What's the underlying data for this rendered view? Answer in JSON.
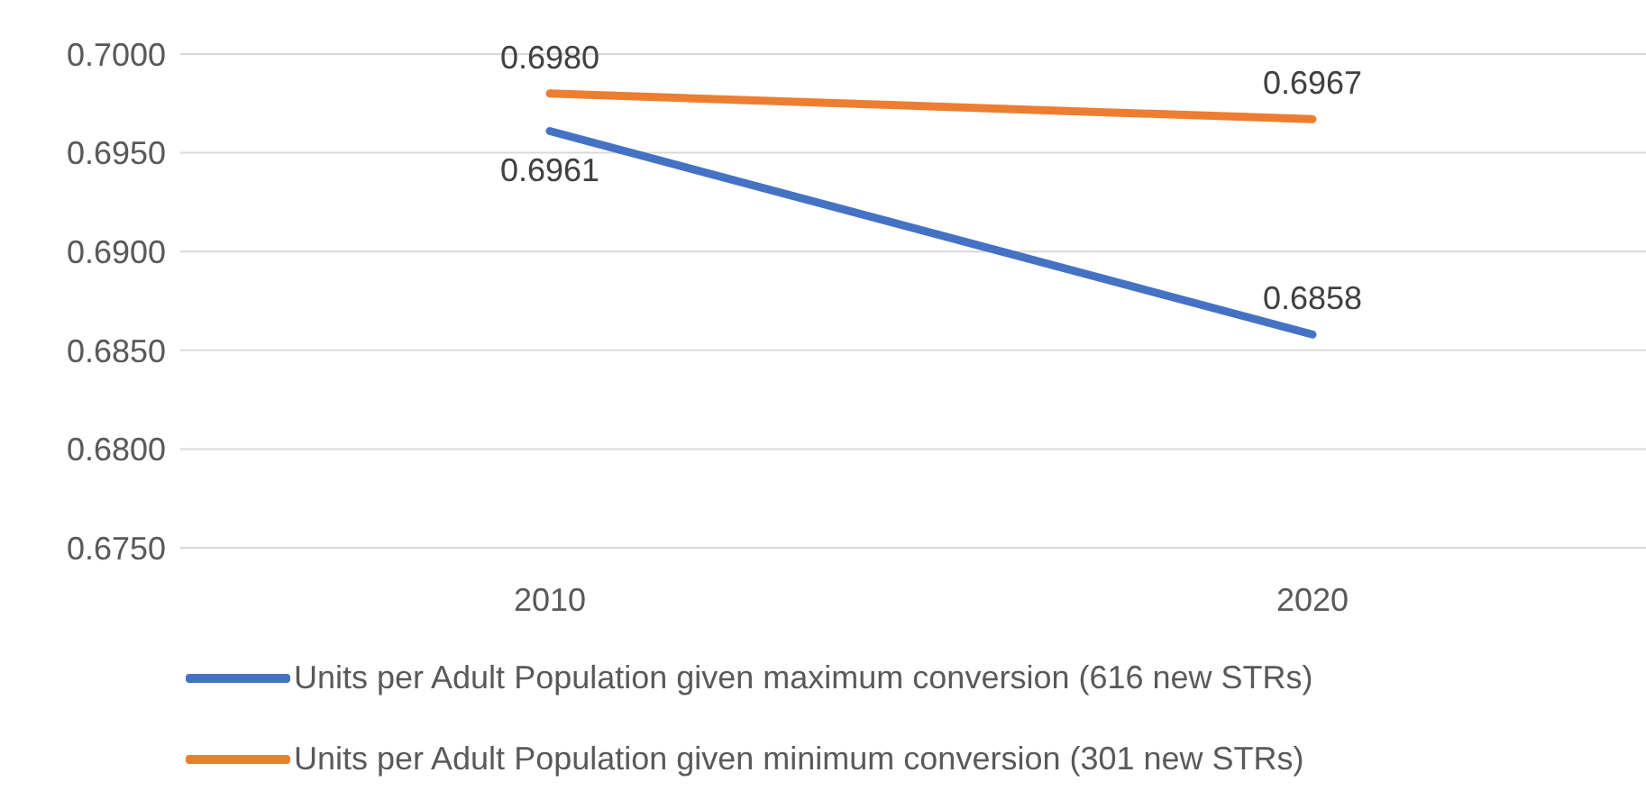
{
  "chart_data": {
    "type": "line",
    "categories": [
      "2010",
      "2020"
    ],
    "series": [
      {
        "name": "Units per Adult Population given maximum conversion (616 new STRs)",
        "color": "#4472c4",
        "values": [
          0.6961,
          0.6858
        ],
        "value_labels": [
          "0.6961",
          "0.6858"
        ]
      },
      {
        "name": "Units per Adult Population given minimum conversion (301 new STRs)",
        "color": "#ed7d31",
        "values": [
          0.698,
          0.6967
        ],
        "value_labels": [
          "0.6980",
          "0.6967"
        ]
      }
    ],
    "ylim": [
      0.675,
      0.7
    ],
    "yticks": [
      {
        "value": 0.675,
        "label": "0.6750"
      },
      {
        "value": 0.68,
        "label": "0.6800"
      },
      {
        "value": 0.685,
        "label": "0.6850"
      },
      {
        "value": 0.69,
        "label": "0.6900"
      },
      {
        "value": 0.695,
        "label": "0.6950"
      },
      {
        "value": 0.7,
        "label": "0.7000"
      }
    ],
    "grid": "y",
    "legend": "bottom",
    "marker": "none",
    "line_style": "solid"
  }
}
